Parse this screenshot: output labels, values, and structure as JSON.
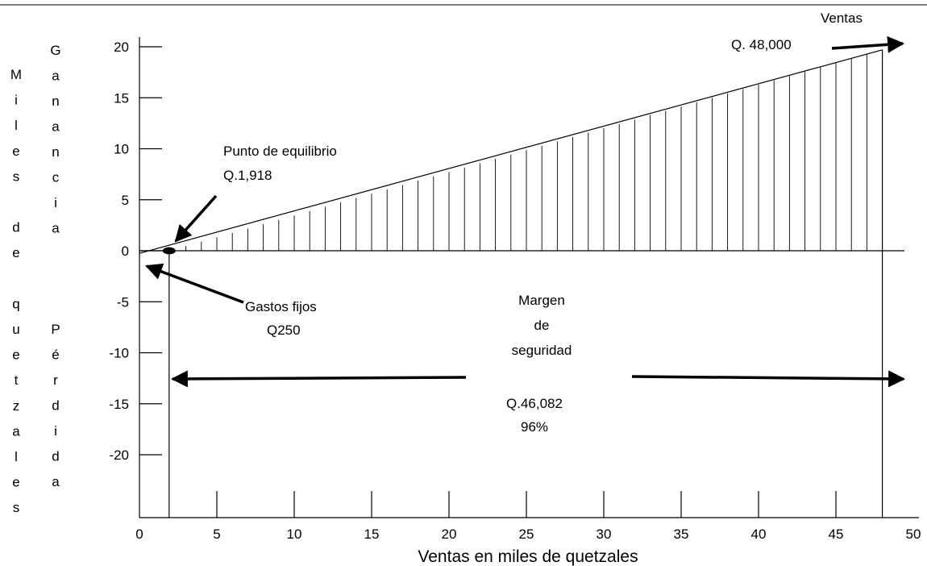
{
  "chart_data": {
    "type": "line",
    "title": "",
    "xlabel": "Ventas en miles de quetzales",
    "ylabel_left": [
      "M",
      "i",
      "l",
      "e",
      "s",
      "",
      "d",
      "e",
      "",
      "q",
      "u",
      "e",
      "t",
      "z",
      "a",
      "l",
      "e",
      "s"
    ],
    "ylabel_gain": [
      "G",
      "a",
      "n",
      "a",
      "n",
      "c",
      "i",
      "a"
    ],
    "ylabel_loss": [
      "P",
      "é",
      "r",
      "d",
      "i",
      "d",
      "a"
    ],
    "xlim": [
      0,
      50
    ],
    "ylim": [
      -25,
      21
    ],
    "x_ticks": [
      0,
      5,
      10,
      15,
      20,
      25,
      30,
      35,
      40,
      45,
      50
    ],
    "x_tick_labels": [
      "0",
      "5",
      "10",
      "15",
      "20",
      "25",
      "30",
      "35",
      "40",
      "45",
      "50"
    ],
    "y_ticks": [
      20,
      15,
      10,
      5,
      0,
      -5,
      -10,
      -15,
      -20
    ],
    "y_tick_labels": [
      "20",
      "15",
      "10",
      "5",
      "0",
      "-5",
      "-10",
      "-15",
      "-20"
    ],
    "grid": false,
    "series": [
      {
        "name": "",
        "x": [
          0,
          1.918,
          48
        ],
        "y": [
          -0.25,
          0,
          19.7
        ]
      }
    ],
    "break_even_x": 1.918,
    "sales_x": 48,
    "annotations": {
      "ventas": [
        "Ventas",
        "Q. 48,000"
      ],
      "equilibrio": [
        "Punto de equilibrio",
        "Q.1,918"
      ],
      "gastos": [
        "Gastos fijos",
        "Q250"
      ],
      "margen": [
        "Margen",
        "de",
        "seguridad",
        "Q.46,082",
        "96%"
      ]
    }
  }
}
